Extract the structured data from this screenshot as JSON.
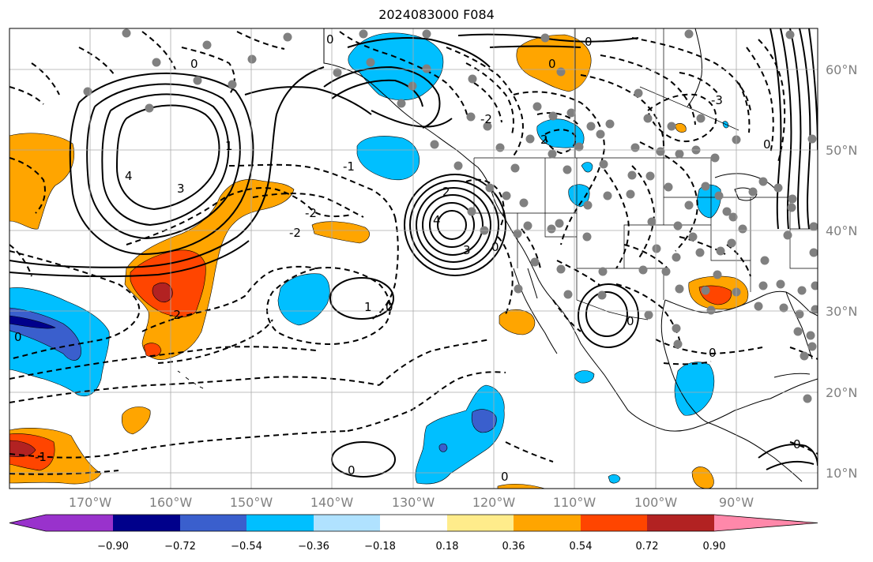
{
  "title": "2024083000 F084",
  "lon_ticks": [
    "170°W",
    "160°W",
    "150°W",
    "140°W",
    "130°W",
    "120°W",
    "110°W",
    "100°W",
    "90°W"
  ],
  "lat_ticks": [
    "60°N",
    "50°N",
    "40°N",
    "30°N",
    "20°N",
    "10°N"
  ],
  "colorbar": {
    "colors": [
      "#9932CC",
      "#00008B",
      "#3A5FCD",
      "#00BFFF",
      "#B0E2FF",
      "#FFFFFF",
      "#FFEC8B",
      "#FFA500",
      "#FF4500",
      "#B22222",
      "#FF88AA"
    ],
    "labels": [
      "−0.90",
      "−0.72",
      "−0.54",
      "−0.36",
      "−0.18",
      "0.18",
      "0.36",
      "0.54",
      "0.72",
      "0.90"
    ]
  },
  "contour_labels": {
    "zero": "0",
    "one": "1",
    "two": "2",
    "three": "3",
    "four": "4",
    "neg_one": "-1",
    "neg_two": "-2",
    "neg_three": "-3"
  }
}
